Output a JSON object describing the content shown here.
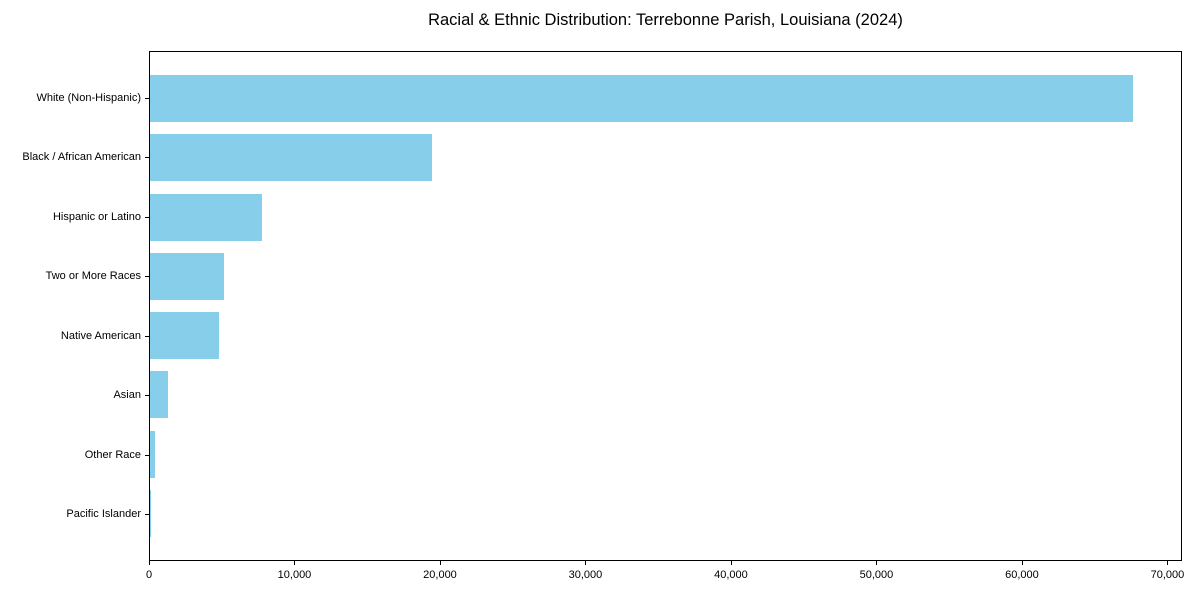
{
  "chart_data": {
    "type": "bar",
    "orientation": "horizontal",
    "title": "Racial & Ethnic Distribution: Terrebonne Parish, Louisiana (2024)",
    "xlabel": "",
    "ylabel": "",
    "categories": [
      "White (Non-Hispanic)",
      "Black / African American",
      "Hispanic or Latino",
      "Two or More Races",
      "Native American",
      "Asian",
      "Other Race",
      "Pacific Islander"
    ],
    "values": [
      67700,
      19400,
      7700,
      5100,
      4750,
      1250,
      350,
      30
    ],
    "xlim": [
      0,
      71000
    ],
    "x_ticks": [
      0,
      10000,
      20000,
      30000,
      40000,
      50000,
      60000,
      70000
    ],
    "x_tick_labels": [
      "0",
      "10,000",
      "20,000",
      "30,000",
      "40,000",
      "50,000",
      "60,000",
      "70,000"
    ],
    "bar_color": "#87CEEB",
    "background_color": "#ffffff",
    "frame_color": "#000000",
    "grid": false,
    "legend": "none"
  }
}
